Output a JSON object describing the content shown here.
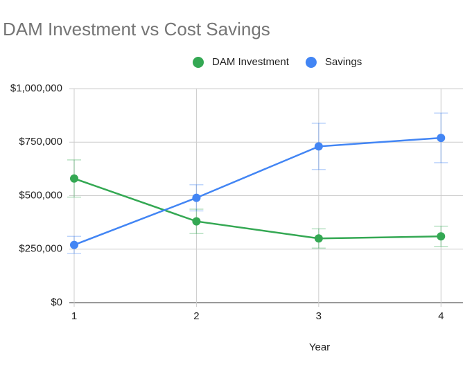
{
  "chart_data": {
    "type": "line",
    "title": "DAM Investment vs Cost Savings",
    "x_label": "Year",
    "x": [
      1,
      2,
      3,
      4
    ],
    "series": [
      {
        "name": "DAM Investment",
        "color": "#34a853",
        "values": [
          580000,
          380000,
          300000,
          310000
        ],
        "errors": [
          87000,
          57000,
          45000,
          47000
        ]
      },
      {
        "name": "Savings",
        "color": "#4285f4",
        "values": [
          270000,
          490000,
          730000,
          770000
        ],
        "errors": [
          40000,
          61000,
          108000,
          116000
        ]
      }
    ],
    "xlim": [
      1,
      4.18
    ],
    "xticks": [
      1,
      2,
      3,
      4
    ],
    "ylim": [
      0,
      1000000
    ],
    "yticks": [
      {
        "value": 0,
        "label": "$0"
      },
      {
        "value": 250000,
        "label": "$250,000"
      },
      {
        "value": 500000,
        "label": "$500,000"
      },
      {
        "value": 750000,
        "label": "$750,000"
      },
      {
        "value": 1000000,
        "label": "$1,000,000"
      }
    ],
    "grid": true,
    "legend": "top"
  }
}
